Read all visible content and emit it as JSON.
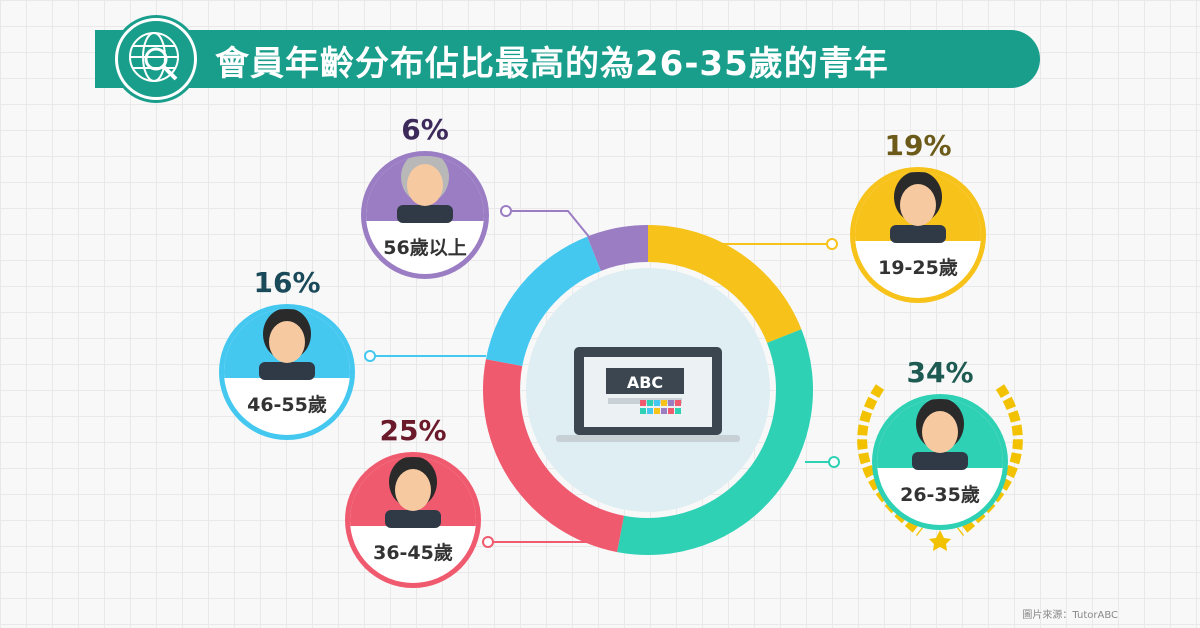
{
  "title": "會員年齡分布佔比最高的為26-35歲的青年",
  "source": "圖片來源：TutorABC",
  "center_screen_text": "ABC",
  "chart_data": {
    "type": "pie",
    "donut": true,
    "title": "會員年齡分布佔比最高的為26-35歲的青年",
    "categories": [
      "19-25歲",
      "26-35歲",
      "36-45歲",
      "46-55歲",
      "56歲以上"
    ],
    "values": [
      19,
      34,
      25,
      16,
      6
    ],
    "labels": [
      "19%",
      "34%",
      "25%",
      "16%",
      "6%"
    ],
    "colors": [
      "#f7c21a",
      "#2fd1b5",
      "#f05a6e",
      "#45c8f0",
      "#9b7dc4"
    ],
    "highlight": "26-35歲"
  }
}
